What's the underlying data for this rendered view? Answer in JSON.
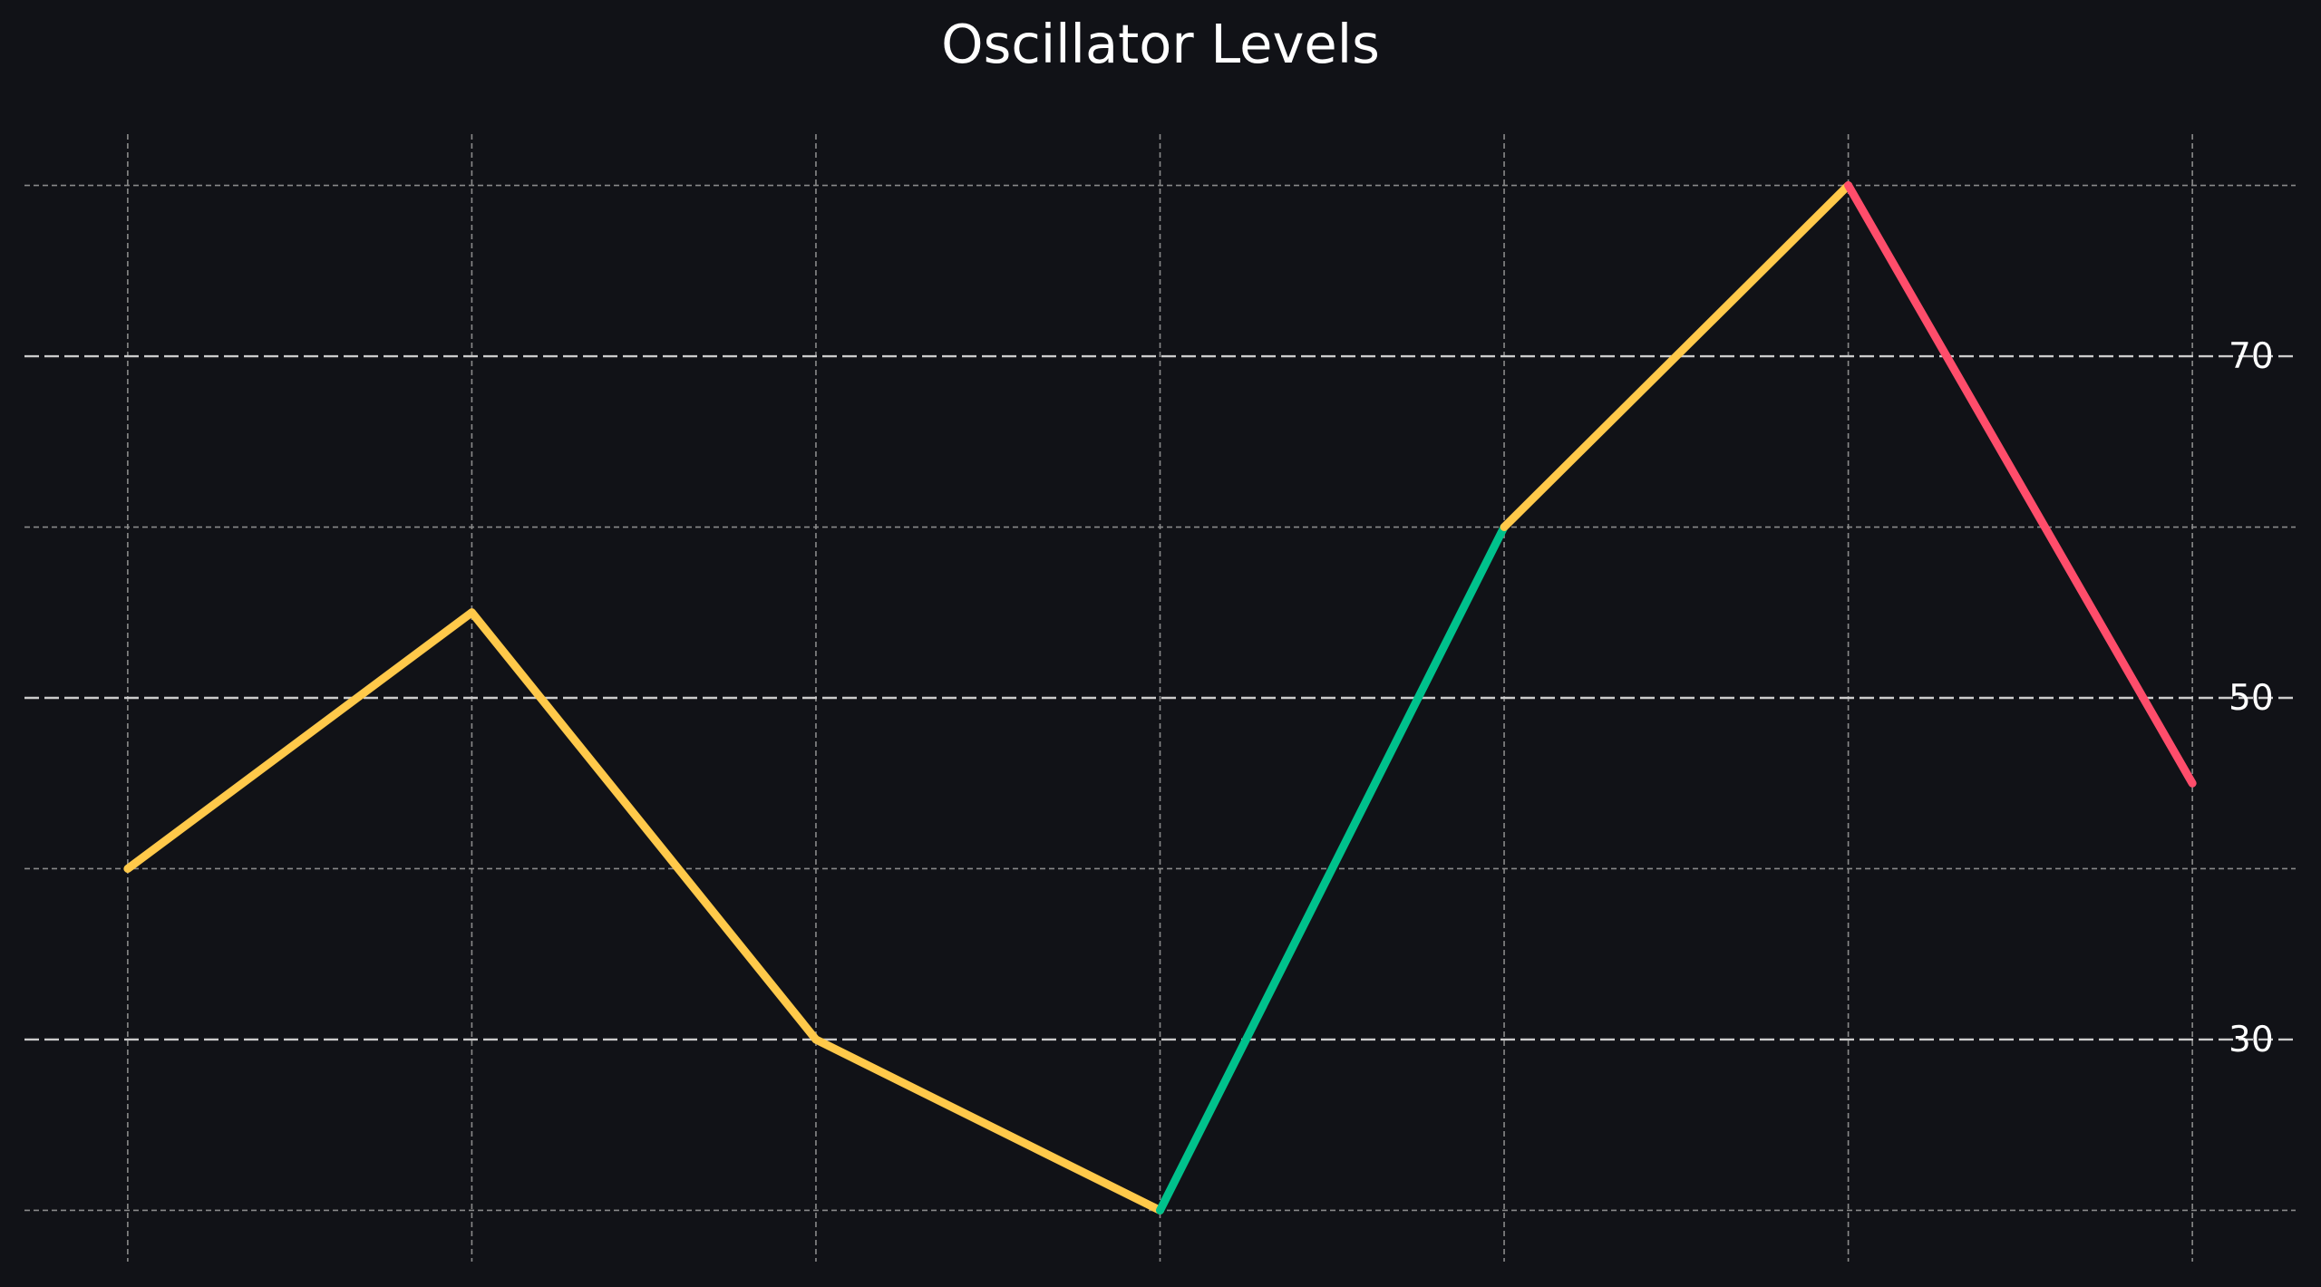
{
  "chart_data": {
    "type": "line",
    "title": "Oscillator Levels",
    "xlabel": "",
    "ylabel": "",
    "x": [
      0,
      1,
      2,
      3,
      4,
      5,
      6
    ],
    "values": [
      40,
      55,
      30,
      20,
      60,
      80,
      45
    ],
    "segment_colors": [
      "#ffc94a",
      "#ffc94a",
      "#ffc94a",
      "#00c18c",
      "#ffc94a",
      "#ff4d6b"
    ],
    "xlim": [
      -0.3,
      6.3
    ],
    "ylim": [
      17,
      83
    ],
    "y_ticks": [
      30,
      50,
      70
    ],
    "y_axis_position": "right",
    "grid": true,
    "reference_lines": [
      30,
      50,
      70
    ],
    "colors": {
      "background": "#111217",
      "grid": "#8a8a8a",
      "reference_line": "#cccccc",
      "text": "#ffffff"
    }
  }
}
